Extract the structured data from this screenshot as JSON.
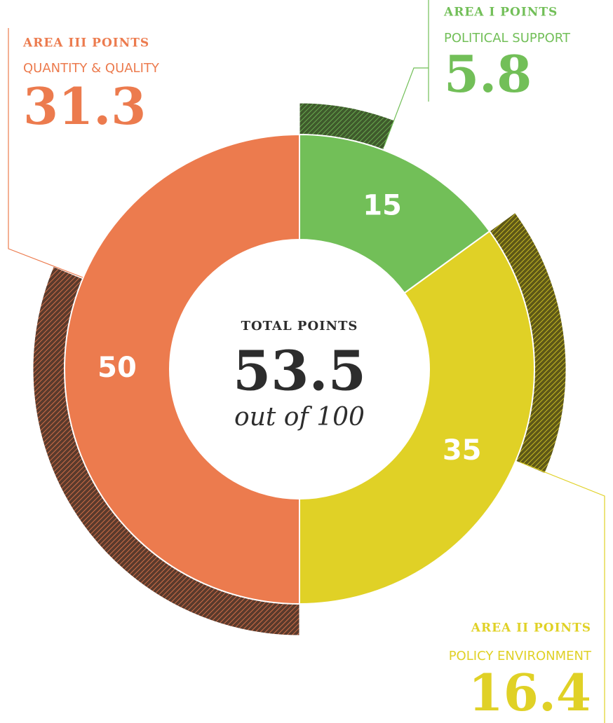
{
  "chart_data": {
    "type": "donut",
    "center_label": "TOTAL POINTS",
    "total": 53.5,
    "center_subtitle": "out of 100",
    "categories": [
      "AREA I POINTS",
      "AREA II POINTS",
      "AREA III POINTS"
    ],
    "subtitles": [
      "POLITICAL SUPPORT",
      "POLICY ENVIRONMENT",
      "QUANTITY & QUALITY"
    ],
    "values": [
      15,
      35,
      50
    ],
    "scores": [
      5.8,
      16.4,
      31.3
    ],
    "colors": [
      "#72bf58",
      "#e0d126",
      "#ec7b4e"
    ],
    "hatch_colors": [
      "#3f5a2c",
      "#5e5817",
      "#5a3a2c"
    ]
  }
}
